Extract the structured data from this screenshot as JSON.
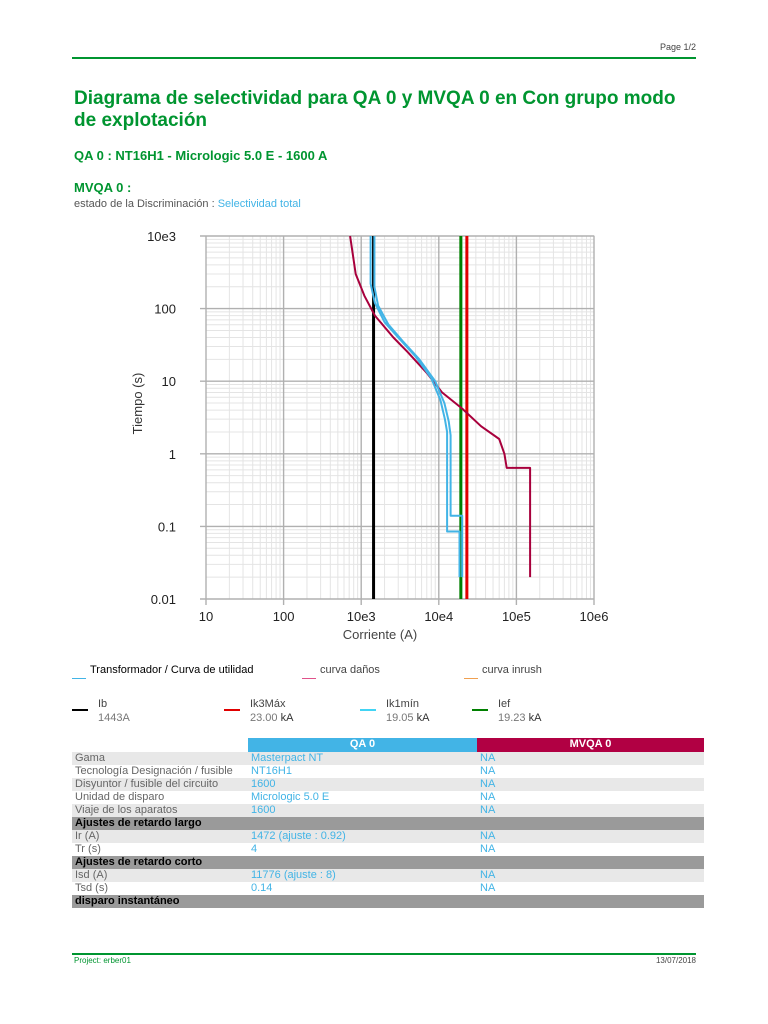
{
  "header": {
    "page": "Page 1/2"
  },
  "title": "Diagrama de selectividad para QA 0 y MVQA 0 en Con grupo modo de explotación",
  "device_line": "QA 0 : NT16H1 - Micrologic 5.0 E - 1600 A",
  "mvqa_label": "MVQA 0 :",
  "estado": {
    "label": "estado de la Discriminación : ",
    "value": "Selectividad total"
  },
  "chart_data": {
    "type": "line",
    "xlabel": "Corriente (A)",
    "ylabel": "Tiempo (s)",
    "x_scale": "log",
    "y_scale": "log",
    "xlim": [
      10,
      1000000
    ],
    "ylim": [
      0.01,
      1000
    ],
    "x_ticks": [
      "10",
      "100",
      "10e3",
      "10e4",
      "10e5",
      "10e6"
    ],
    "y_ticks": [
      "0.01",
      "0.1",
      "1",
      "10",
      "100",
      "10e3"
    ],
    "grid": true,
    "series": [
      {
        "name": "Ib",
        "kind": "vline",
        "x": 1443,
        "color": "#000000"
      },
      {
        "name": "Ik3Máx",
        "kind": "vline",
        "x": 23000,
        "color": "#e00000"
      },
      {
        "name": "Ief",
        "kind": "vline",
        "x": 19230,
        "color": "#008000"
      },
      {
        "kind": "curve",
        "color": "#a8003c",
        "points": [
          [
            720,
            1000
          ],
          [
            850,
            300
          ],
          [
            1100,
            150
          ],
          [
            1500,
            80
          ],
          [
            2600,
            40
          ],
          [
            4000,
            25
          ],
          [
            7000,
            13
          ],
          [
            11000,
            7
          ],
          [
            20000,
            4.2
          ],
          [
            35000,
            2.4
          ],
          [
            60000,
            1.6
          ],
          [
            70000,
            1
          ],
          [
            75000,
            0.64
          ],
          [
            150000,
            0.64
          ],
          [
            150000,
            0.02
          ]
        ]
      },
      {
        "kind": "curve",
        "color": "#42b4e6",
        "points": [
          [
            1320,
            1000
          ],
          [
            1320,
            220
          ],
          [
            1500,
            120
          ],
          [
            2000,
            65
          ],
          [
            3000,
            40
          ],
          [
            5000,
            22
          ],
          [
            8000,
            11
          ],
          [
            10500,
            5.5
          ],
          [
            12000,
            3
          ],
          [
            12800,
            2
          ],
          [
            12800,
            0.085
          ],
          [
            18500,
            0.085
          ],
          [
            18500,
            0.02
          ]
        ]
      },
      {
        "kind": "curve",
        "color": "#42b4e6",
        "points": [
          [
            1480,
            1000
          ],
          [
            1480,
            200
          ],
          [
            1650,
            110
          ],
          [
            2250,
            60
          ],
          [
            3400,
            36
          ],
          [
            5600,
            20
          ],
          [
            9000,
            10
          ],
          [
            11800,
            5
          ],
          [
            13400,
            2.8
          ],
          [
            14200,
            1.8
          ],
          [
            14200,
            0.14
          ],
          [
            20000,
            0.14
          ],
          [
            20000,
            0.02
          ]
        ]
      }
    ]
  },
  "legend1": [
    {
      "label": "Transformador / Curva de utilidad",
      "color": "#42b4e6"
    },
    {
      "label": "curva daños",
      "color": "#e0528a"
    },
    {
      "label": "curva inrush",
      "color": "#f0a050"
    }
  ],
  "legend2": [
    {
      "label": "Ib",
      "value": "1443A",
      "unit": "",
      "color": "#000000"
    },
    {
      "label": "Ik3Máx",
      "value": "23.00",
      "unit": " kA",
      "color": "#e00000"
    },
    {
      "label": "Ik1mín",
      "value": "19.05",
      "unit": " kA",
      "color": "#42d4f4"
    },
    {
      "label": "Ief",
      "value": "19.23",
      "unit": " kA",
      "color": "#008000"
    }
  ],
  "table": {
    "col_qa": "QA 0",
    "col_mv": "MVQA 0",
    "rows": [
      {
        "type": "row",
        "label": "Gama",
        "qa": "Masterpact NT",
        "mv": "NA"
      },
      {
        "type": "row",
        "label": "Tecnología Designación / fusible",
        "qa": "NT16H1",
        "mv": "NA"
      },
      {
        "type": "row",
        "label": "Disyuntor / fusible del circuito",
        "qa": "1600",
        "mv": "NA"
      },
      {
        "type": "row",
        "label": "Unidad de disparo",
        "qa": "Micrologic 5.0 E",
        "mv": "NA"
      },
      {
        "type": "row",
        "label": "Viaje de los aparatos",
        "qa": "1600",
        "mv": "NA"
      },
      {
        "type": "section",
        "label": "Ajustes de retardo largo"
      },
      {
        "type": "row",
        "label": "Ir (A)",
        "qa": "1472 (ajuste : 0.92)",
        "mv": "NA"
      },
      {
        "type": "row",
        "label": "Tr (s)",
        "qa": "4",
        "mv": "NA"
      },
      {
        "type": "section",
        "label": "Ajustes de retardo corto"
      },
      {
        "type": "row",
        "label": "Isd (A)",
        "qa": "11776 (ajuste : 8)",
        "mv": "NA"
      },
      {
        "type": "row",
        "label": "Tsd (s)",
        "qa": "0.14",
        "mv": "NA"
      },
      {
        "type": "section",
        "label": "disparo instantáneo"
      }
    ]
  },
  "footer": {
    "project_label": "Project: ",
    "project_value": "erber01",
    "date": "13/07/2018"
  }
}
